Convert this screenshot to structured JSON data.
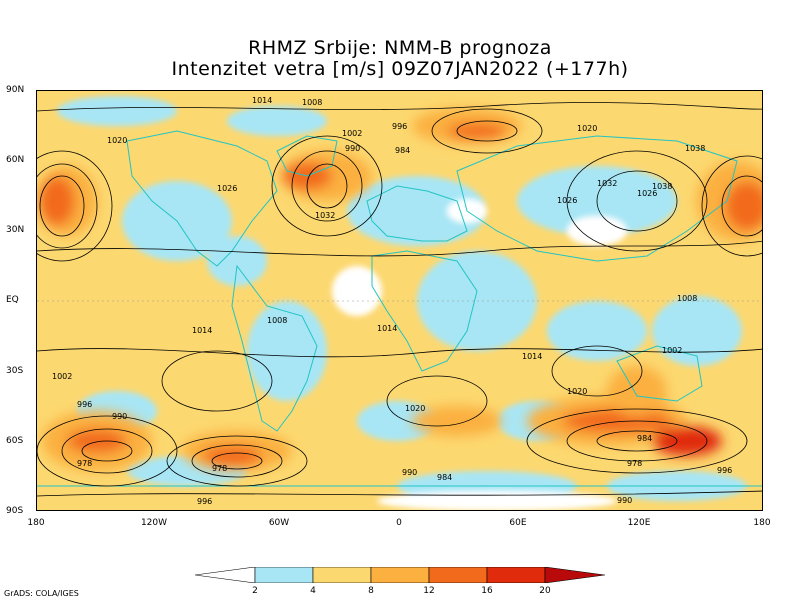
{
  "title": {
    "line1": "RHMZ Srbije: NMM-B prognoza",
    "line2": "Intenzitet vetra [m/s] 09Z07JAN2022 (+177h)"
  },
  "map": {
    "lat_labels": [
      "90N",
      "60N",
      "30N",
      "EQ",
      "30S",
      "60S",
      "90S"
    ],
    "lon_labels": [
      "180",
      "120W",
      "60W",
      "0",
      "60E",
      "120E",
      "180"
    ],
    "isobar_labels": [
      "1014",
      "1008",
      "1020",
      "1002",
      "996",
      "990",
      "984",
      "1026",
      "1032",
      "1038",
      "978"
    ],
    "colors": {
      "land_outline": "#22c4c4",
      "contour": "#000000",
      "fill_lt2": "#ffffff",
      "fill_2_4": "#a8e6f5",
      "fill_4_8": "#fcd870",
      "fill_8_12": "#fbb040",
      "fill_12_16": "#f26a1c",
      "fill_16_20": "#e02b0c",
      "fill_gt20": "#b80a0a"
    }
  },
  "colorbar": {
    "ticks": [
      "2",
      "4",
      "8",
      "12",
      "16",
      "20"
    ]
  },
  "footer": {
    "credit": "GrADS: COLA/IGES"
  }
}
